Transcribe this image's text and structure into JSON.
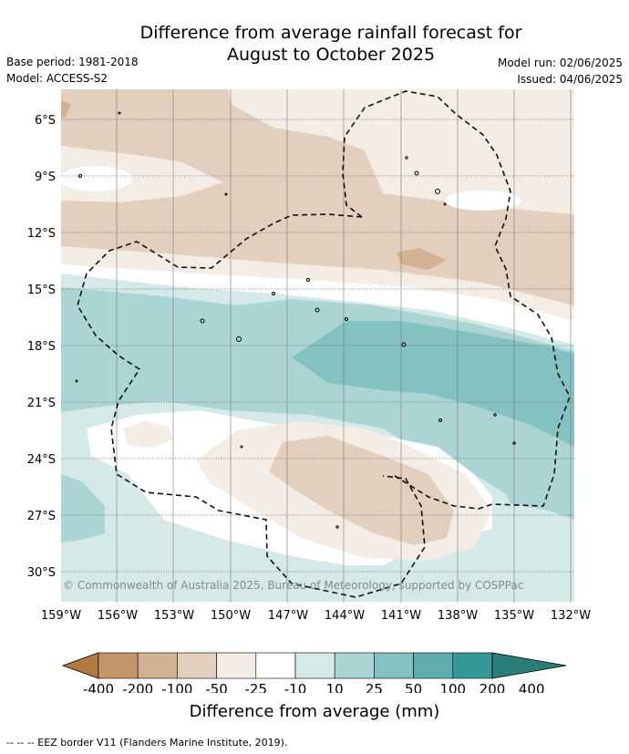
{
  "title": {
    "line1": "Difference from average rainfall forecast for",
    "line2": "August to October 2025"
  },
  "meta": {
    "base_period": "Base period: 1981-2018",
    "model": "Model: ACCESS-S2",
    "model_run": "Model run: 02/06/2025",
    "issued": "Issued: 04/06/2025"
  },
  "map": {
    "copyright": "© Commonwealth of Australia 2025, Bureau of Meteorology, supported by COSPPac",
    "lat_labels": [
      "6°S",
      "9°S",
      "12°S",
      "15°S",
      "18°S",
      "21°S",
      "24°S",
      "27°S",
      "30°S"
    ],
    "lon_labels": [
      "159°W",
      "156°W",
      "153°W",
      "150°W",
      "147°W",
      "144°W",
      "141°W",
      "138°W",
      "135°W",
      "132°W"
    ],
    "gridlines": true
  },
  "colorbar": {
    "ticks": [
      "-400",
      "-200",
      "-100",
      "-50",
      "-25",
      "-10",
      "10",
      "25",
      "50",
      "100",
      "200",
      "400"
    ],
    "colors": [
      "#b07a40",
      "#c2956a",
      "#d2b292",
      "#e3cfbd",
      "#f4ede6",
      "#ffffff",
      "#d5eae8",
      "#aad5d4",
      "#84c1c1",
      "#5eacac",
      "#349996",
      "#2a7e7a"
    ],
    "label": "Difference from average (mm)"
  },
  "footer": {
    "legend_line": "-- -- -- EEZ border V11 (Flanders Marine Institute, 2019)."
  }
}
